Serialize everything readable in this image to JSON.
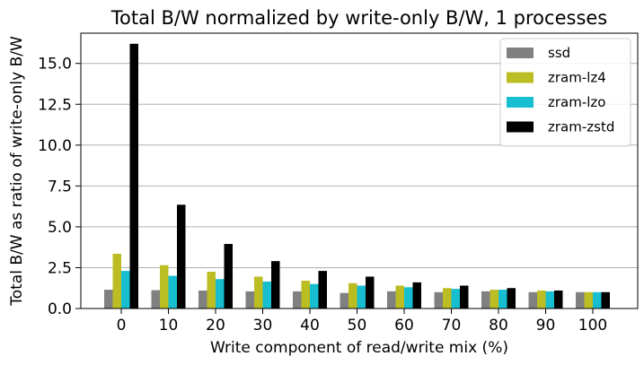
{
  "chart_data": {
    "type": "bar",
    "title": "Total B/W normalized by write-only B/W, 1 processes",
    "xlabel": "Write component of read/write mix (%)",
    "ylabel": "Total B/W as ratio of write-only B/W",
    "categories": [
      "0",
      "10",
      "20",
      "30",
      "40",
      "50",
      "60",
      "70",
      "80",
      "90",
      "100"
    ],
    "ylim": [
      0,
      16.85
    ],
    "yticks": [
      0.0,
      2.5,
      5.0,
      7.5,
      10.0,
      12.5,
      15.0
    ],
    "ytick_labels": [
      "0.0",
      "2.5",
      "5.0",
      "7.5",
      "10.0",
      "12.5",
      "15.0"
    ],
    "grid": "horizontal",
    "legend_position": "top-right",
    "series": [
      {
        "name": "ssd",
        "color": "#808080",
        "values": [
          1.15,
          1.12,
          1.1,
          1.05,
          1.05,
          0.95,
          1.05,
          1.0,
          1.05,
          1.0,
          1.0
        ]
      },
      {
        "name": "zram-lz4",
        "color": "#bcbd22",
        "values": [
          3.35,
          2.65,
          2.25,
          1.95,
          1.7,
          1.55,
          1.4,
          1.25,
          1.15,
          1.1,
          1.0
        ]
      },
      {
        "name": "zram-lzo",
        "color": "#17becf",
        "values": [
          2.3,
          2.0,
          1.8,
          1.65,
          1.5,
          1.4,
          1.3,
          1.2,
          1.15,
          1.05,
          1.0
        ]
      },
      {
        "name": "zram-zstd",
        "color": "#000000",
        "values": [
          16.2,
          6.35,
          3.95,
          2.9,
          2.3,
          1.95,
          1.6,
          1.4,
          1.25,
          1.1,
          1.0
        ]
      }
    ]
  }
}
